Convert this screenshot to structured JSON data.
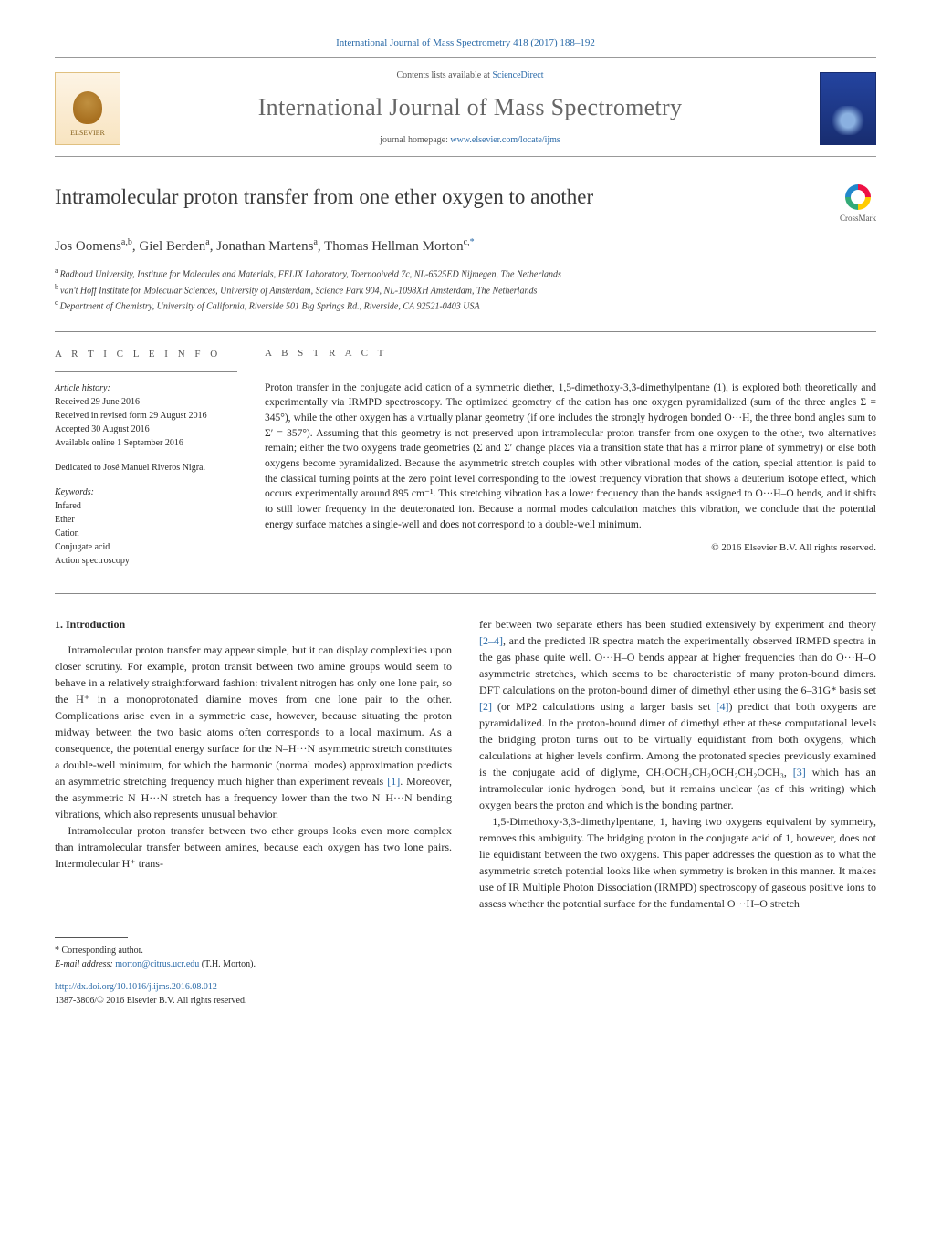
{
  "header_citation": "International Journal of Mass Spectrometry 418 (2017) 188–192",
  "contents_line_prefix": "Contents lists available at ",
  "contents_line_link": "ScienceDirect",
  "journal_name": "International Journal of Mass Spectrometry",
  "homepage_prefix": "journal homepage: ",
  "homepage_link": "www.elsevier.com/locate/ijms",
  "publisher_logo_label": "ELSEVIER",
  "crossmark_label": "CrossMark",
  "article_title": "Intramolecular proton transfer from one ether oxygen to another",
  "authors_html": "Jos Oomens|a,b|, Giel Berden|a|, Jonathan Martens|a|, Thomas Hellman Morton|c,*|",
  "authors": [
    {
      "name": "Jos Oomens",
      "sup": "a,b"
    },
    {
      "name": "Giel Berden",
      "sup": "a"
    },
    {
      "name": "Jonathan Martens",
      "sup": "a"
    },
    {
      "name": "Thomas Hellman Morton",
      "sup": "c,*",
      "corr": true
    }
  ],
  "affiliations": [
    {
      "sup": "a",
      "text": "Radboud University, Institute for Molecules and Materials, FELIX Laboratory, Toernooiveld 7c, NL-6525ED Nijmegen, The Netherlands"
    },
    {
      "sup": "b",
      "text": "van't Hoff Institute for Molecular Sciences, University of Amsterdam, Science Park 904, NL-1098XH Amsterdam, The Netherlands"
    },
    {
      "sup": "c",
      "text": "Department of Chemistry, University of California, Riverside 501 Big Springs Rd., Riverside, CA 92521-0403 USA"
    }
  ],
  "article_info_heading": "A R T I C L E   I N F O",
  "history_label": "Article history:",
  "history": [
    "Received 29 June 2016",
    "Received in revised form 29 August 2016",
    "Accepted 30 August 2016",
    "Available online 1 September 2016"
  ],
  "dedication": "Dedicated to José Manuel Riveros Nigra.",
  "keywords_label": "Keywords:",
  "keywords": [
    "Infared",
    "Ether",
    "Cation",
    "Conjugate acid",
    "Action spectroscopy"
  ],
  "abstract_heading": "A B S T R A C T",
  "abstract_text": "Proton transfer in the conjugate acid cation of a symmetric diether, 1,5-dimethoxy-3,3-dimethylpentane (1), is explored both theoretically and experimentally via IRMPD spectroscopy. The optimized geometry of the cation has one oxygen pyramidalized (sum of the three angles Σ = 345°), while the other oxygen has a virtually planar geometry (if one includes the strongly hydrogen bonded O···H, the three bond angles sum to Σ′ = 357°). Assuming that this geometry is not preserved upon intramolecular proton transfer from one oxygen to the other, two alternatives remain; either the two oxygens trade geometries (Σ and Σ′ change places via a transition state that has a mirror plane of symmetry) or else both oxygens become pyramidalized. Because the asymmetric stretch couples with other vibrational modes of the cation, special attention is paid to the classical turning points at the zero point level corresponding to the lowest frequency vibration that shows a deuterium isotope effect, which occurs experimentally around 895 cm⁻¹. This stretching vibration has a lower frequency than the bands assigned to O···H–O bends, and it shifts to still lower frequency in the deuteronated ion. Because a normal modes calculation matches this vibration, we conclude that the potential energy surface matches a single-well and does not correspond to a double-well minimum.",
  "copyright_line": "© 2016 Elsevier B.V. All rights reserved.",
  "intro_heading": "1. Introduction",
  "intro_para1": "Intramolecular proton transfer may appear simple, but it can display complexities upon closer scrutiny. For example, proton transit between two amine groups would seem to behave in a relatively straightforward fashion: trivalent nitrogen has only one lone pair, so the H⁺ in a monoprotonated diamine moves from one lone pair to the other. Complications arise even in a symmetric case, however, because situating the proton midway between the two basic atoms often corresponds to a local maximum. As a consequence, the potential energy surface for the N–H···N asymmetric stretch constitutes a double-well minimum, for which the harmonic (normal modes) approximation predicts an asymmetric stretching frequency much higher than experiment reveals ",
  "intro_ref1": "[1]",
  "intro_para1_tail": ". Moreover, the asymmetric N–H···N stretch has a frequency lower than the two N–H···N bending vibrations, which also represents unusual behavior.",
  "intro_para2": "Intramolecular proton transfer between two ether groups looks even more complex than intramolecular transfer between amines, because each oxygen has two lone pairs. Intermolecular H⁺ trans-",
  "right_para1_pre": "fer between two separate ethers has been studied extensively by experiment and theory ",
  "right_ref24": "[2–4]",
  "right_para1_mid": ", and the predicted IR spectra match the experimentally observed IRMPD spectra in the gas phase quite well. O···H–O bends appear at higher frequencies than do O···H–O asymmetric stretches, which seems to be characteristic of many proton-bound dimers. DFT calculations on the proton-bound dimer of dimethyl ether using the 6–31G* basis set ",
  "right_ref2": "[2]",
  "right_para1_mid2": " (or MP2 calculations using a larger basis set ",
  "right_ref4": "[4]",
  "right_para1_tail": ") predict that both oxygens are pyramidalized. In the proton-bound dimer of dimethyl ether at these computational levels the bridging proton turns out to be virtually equidistant from both oxygens, which calculations at higher levels confirm. Among the protonated species previously examined is the conjugate acid of diglyme, CH₃OCH₂CH₂OCH₂CH₂OCH₃, ",
  "right_ref3": "[3]",
  "right_para1_end": " which has an intramolecular ionic hydrogen bond, but it remains unclear (as of this writing) which oxygen bears the proton and which is the bonding partner.",
  "right_para2": "1,5-Dimethoxy-3,3-dimethylpentane, 1, having two oxygens equivalent by symmetry, removes this ambiguity. The bridging proton in the conjugate acid of 1, however, does not lie equidistant between the two oxygens. This paper addresses the question as to what the asymmetric stretch potential looks like when symmetry is broken in this manner. It makes use of IR Multiple Photon Dissociation (IRMPD) spectroscopy of gaseous positive ions to assess whether the potential surface for the fundamental O···H–O stretch",
  "corr_label": "* Corresponding author.",
  "email_prefix": "E-mail address: ",
  "email": "morton@citrus.ucr.edu",
  "email_suffix": " (T.H. Morton).",
  "doi_link": "http://dx.doi.org/10.1016/j.ijms.2016.08.012",
  "issn_copyright": "1387-3806/© 2016 Elsevier B.V. All rights reserved.",
  "colors": {
    "link": "#2a6aa8",
    "text": "#2a2a2a",
    "rule": "#888888",
    "muted": "#555555",
    "elsevier_bg_top": "#fdf4e5",
    "elsevier_bg_bot": "#f8e4c0",
    "cover_top": "#2444a0",
    "cover_bot": "#182d70"
  },
  "typography": {
    "body_pt": 12,
    "title_pt": 23,
    "journal_pt": 26,
    "abstract_pt": 11.5,
    "meta_pt": 10,
    "authors_pt": 15
  }
}
